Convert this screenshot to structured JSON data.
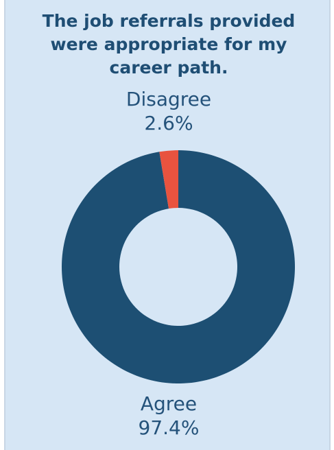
{
  "chart_data": {
    "type": "pie",
    "title": "The job referrals provided were appropriate for my career path.",
    "donut": true,
    "slices": [
      {
        "label": "Disagree",
        "value": 2.6,
        "value_label": "2.6%",
        "color": "#e8533f"
      },
      {
        "label": "Agree",
        "value": 97.4,
        "value_label": "97.4%",
        "color": "#1d4f73"
      }
    ],
    "start_angle_deg": 0,
    "direction": "counterclockwise-from-top for Disagree",
    "colors": {
      "background": "#d6e6f5",
      "hole": "#d6e6f5",
      "title": "#1f4e74",
      "label": "#24527a"
    }
  }
}
